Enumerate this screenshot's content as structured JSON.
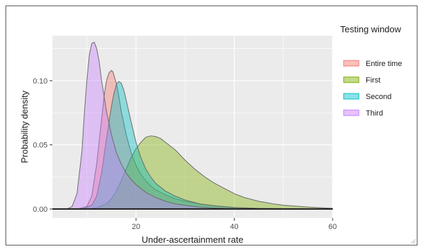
{
  "chart_data": {
    "type": "area",
    "title": "",
    "xlabel": "Under-ascertainment rate",
    "ylabel": "Probability density",
    "xlim": [
      3,
      60
    ],
    "ylim": [
      -0.007,
      0.135
    ],
    "x_ticks": [
      20,
      40,
      60
    ],
    "y_ticks": [
      0.0,
      0.05,
      0.1
    ],
    "y_tick_labels": [
      "0.00",
      "0.05",
      "0.10"
    ],
    "grid": true,
    "legend": {
      "title": "Testing window",
      "position": "right"
    },
    "series": [
      {
        "name": "Entire time",
        "color": "#F8766D",
        "x": [
          3,
          8,
          10,
          11,
          12,
          13,
          13.5,
          14,
          14.5,
          15,
          15.3,
          16,
          16.5,
          17,
          18,
          19,
          20,
          21,
          22,
          23,
          24,
          26,
          28,
          30,
          33,
          36,
          40,
          45,
          50,
          60
        ],
        "y": [
          0,
          0,
          0.002,
          0.01,
          0.035,
          0.07,
          0.088,
          0.1,
          0.106,
          0.108,
          0.107,
          0.098,
          0.088,
          0.076,
          0.058,
          0.044,
          0.034,
          0.027,
          0.022,
          0.018,
          0.015,
          0.011,
          0.008,
          0.006,
          0.004,
          0.0025,
          0.0012,
          0.0005,
          0.0002,
          0
        ]
      },
      {
        "name": "First",
        "color": "#7CAE00",
        "x": [
          3,
          10,
          12,
          14,
          15,
          16,
          17,
          18,
          19,
          20,
          21,
          22,
          23,
          24,
          25,
          26,
          28,
          30,
          32,
          34,
          36,
          38,
          40,
          42,
          45,
          48,
          50,
          55,
          60
        ],
        "y": [
          0,
          0,
          0.001,
          0.004,
          0.008,
          0.014,
          0.022,
          0.031,
          0.04,
          0.047,
          0.052,
          0.056,
          0.057,
          0.0565,
          0.055,
          0.052,
          0.046,
          0.038,
          0.031,
          0.025,
          0.02,
          0.016,
          0.012,
          0.009,
          0.006,
          0.004,
          0.003,
          0.0015,
          0.0005
        ]
      },
      {
        "name": "Second",
        "color": "#00BFC4",
        "x": [
          3,
          9,
          11,
          12,
          13,
          14,
          15,
          15.5,
          16,
          16.5,
          17,
          17.5,
          18,
          19,
          20,
          21,
          22,
          23,
          24,
          26,
          28,
          30,
          33,
          36,
          40,
          45,
          50,
          60
        ],
        "y": [
          0,
          0,
          0.003,
          0.01,
          0.028,
          0.055,
          0.08,
          0.09,
          0.097,
          0.0995,
          0.098,
          0.093,
          0.085,
          0.068,
          0.052,
          0.04,
          0.031,
          0.025,
          0.02,
          0.014,
          0.01,
          0.007,
          0.004,
          0.0025,
          0.0012,
          0.0005,
          0.0002,
          0
        ]
      },
      {
        "name": "Third",
        "color": "#C77CFF",
        "x": [
          3,
          6,
          7,
          8,
          9,
          9.5,
          10,
          10.5,
          11,
          11.5,
          12,
          12.5,
          13,
          13.5,
          14,
          15,
          16,
          17,
          18,
          19,
          20,
          22,
          24,
          26,
          28,
          30,
          33,
          36,
          40,
          50,
          60
        ],
        "y": [
          0,
          0,
          0.002,
          0.012,
          0.045,
          0.075,
          0.1,
          0.12,
          0.129,
          0.13,
          0.125,
          0.115,
          0.1,
          0.088,
          0.076,
          0.058,
          0.044,
          0.035,
          0.028,
          0.023,
          0.019,
          0.013,
          0.009,
          0.006,
          0.004,
          0.003,
          0.0015,
          0.0008,
          0.0003,
          0,
          0
        ]
      }
    ]
  }
}
